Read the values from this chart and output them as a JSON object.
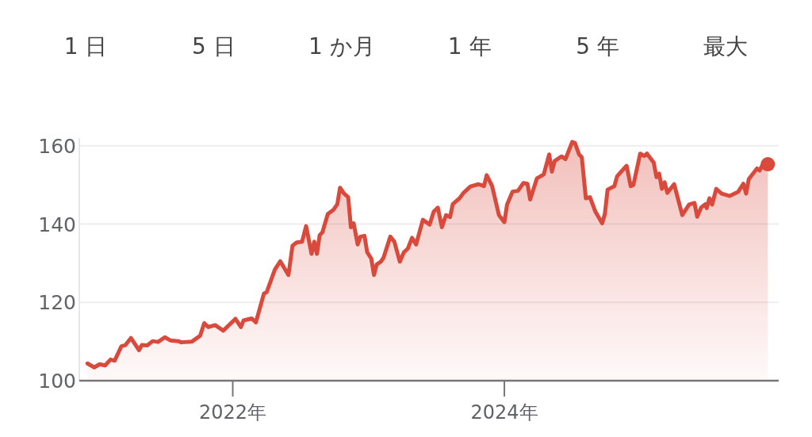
{
  "chart_data": {
    "type": "area",
    "annotations": [
      "1 日",
      "5 日",
      "1 か月",
      "1 年",
      "5 年",
      "最大"
    ],
    "xlim": [
      2020.87,
      2026.02
    ],
    "ylim": [
      100,
      162
    ],
    "xticks": [
      {
        "value": 2022,
        "label": "2022年"
      },
      {
        "value": 2024,
        "label": "2024年"
      }
    ],
    "yticks": [
      100,
      120,
      140,
      160
    ],
    "grid": "y",
    "series": [
      {
        "color": "#d94a3d",
        "x": [
          2020.93,
          2020.98,
          2021.02,
          2021.06,
          2021.1,
          2021.13,
          2021.18,
          2021.21,
          2021.25,
          2021.31,
          2021.33,
          2021.37,
          2021.41,
          2021.45,
          2021.5,
          2021.54,
          2021.6,
          2021.62,
          2021.7,
          2021.76,
          2021.79,
          2021.82,
          2021.87,
          2021.93,
          2022.02,
          2022.06,
          2022.08,
          2022.14,
          2022.17,
          2022.23,
          2022.25,
          2022.31,
          2022.35,
          2022.41,
          2022.44,
          2022.47,
          2022.51,
          2022.54,
          2022.58,
          2022.6,
          2022.62,
          2022.64,
          2022.66,
          2022.7,
          2022.74,
          2022.77,
          2022.79,
          2022.82,
          2022.85,
          2022.87,
          2022.89,
          2022.92,
          2022.94,
          2022.97,
          2022.99,
          2023.02,
          2023.04,
          2023.06,
          2023.09,
          2023.11,
          2023.16,
          2023.19,
          2023.23,
          2023.26,
          2023.29,
          2023.32,
          2023.35,
          2023.4,
          2023.45,
          2023.48,
          2023.51,
          2023.54,
          2023.57,
          2023.6,
          2023.62,
          2023.67,
          2023.7,
          2023.75,
          2023.81,
          2023.85,
          2023.87,
          2023.91,
          2023.96,
          2024.0,
          2024.02,
          2024.06,
          2024.1,
          2024.14,
          2024.17,
          2024.19,
          2024.24,
          2024.29,
          2024.33,
          2024.35,
          2024.37,
          2024.42,
          2024.45,
          2024.5,
          2024.52,
          2024.55,
          2024.57,
          2024.6,
          2024.63,
          2024.67,
          2024.72,
          2024.74,
          2024.76,
          2024.81,
          2024.83,
          2024.86,
          2024.9,
          2024.93,
          2024.95,
          2025.0,
          2025.03,
          2025.05,
          2025.1,
          2025.12,
          2025.14,
          2025.16,
          2025.18,
          2025.2,
          2025.25,
          2025.31,
          2025.36,
          2025.4,
          2025.42,
          2025.45,
          2025.48,
          2025.49,
          2025.51,
          2025.53,
          2025.56,
          2025.6,
          2025.66,
          2025.72,
          2025.76,
          2025.78,
          2025.8,
          2025.86,
          2025.88,
          2025.9,
          2025.94
        ],
        "values": [
          104.4,
          103.4,
          104.2,
          103.9,
          105.4,
          105.1,
          108.8,
          109.1,
          110.9,
          107.8,
          109.1,
          109.0,
          110.1,
          109.9,
          111.1,
          110.3,
          110.1,
          109.8,
          110.0,
          111.5,
          114.7,
          113.7,
          114.2,
          112.8,
          115.8,
          113.7,
          115.4,
          115.9,
          114.9,
          122.3,
          122.6,
          128.4,
          130.5,
          127.0,
          134.5,
          135.3,
          135.5,
          139.5,
          132.4,
          135.5,
          132.4,
          137.2,
          137.9,
          142.6,
          143.6,
          145.1,
          149.3,
          147.8,
          146.9,
          139.2,
          140.2,
          134.8,
          136.8,
          137.0,
          132.8,
          131.2,
          127.0,
          129.7,
          130.4,
          131.4,
          136.8,
          135.5,
          130.4,
          132.8,
          133.8,
          136.5,
          134.8,
          141.1,
          139.9,
          143.2,
          144.2,
          139.2,
          142.3,
          141.8,
          145.1,
          146.6,
          148.0,
          149.6,
          150.2,
          149.7,
          152.5,
          149.7,
          142.3,
          140.5,
          145.0,
          148.3,
          148.5,
          150.5,
          150.3,
          146.3,
          151.7,
          152.7,
          157.8,
          153.4,
          156.1,
          157.3,
          156.6,
          161.0,
          160.7,
          157.8,
          157.1,
          146.6,
          146.9,
          143.2,
          140.2,
          142.6,
          148.8,
          149.7,
          152.2,
          153.4,
          154.9,
          149.7,
          150.0,
          158.0,
          157.4,
          158.0,
          155.7,
          152.0,
          152.9,
          149.0,
          150.7,
          148.0,
          150.2,
          142.3,
          145.0,
          145.4,
          141.9,
          144.3,
          145.1,
          144.1,
          146.6,
          145.0,
          149.0,
          147.8,
          147.2,
          148.2,
          150.3,
          147.8,
          151.5,
          154.2,
          153.7,
          155.1,
          155.3
        ]
      },
      {
        "type": "scatter",
        "color": "#d94a3d",
        "marker": "circle",
        "x": [
          2025.94
        ],
        "values": [
          155.3
        ]
      }
    ]
  }
}
